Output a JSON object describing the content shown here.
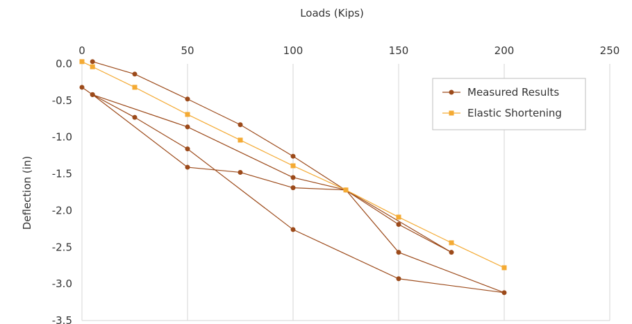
{
  "chart_data": {
    "type": "line",
    "title": "",
    "xlabel": "Loads (Kips)",
    "ylabel": "Deflection (in)",
    "xlim": [
      0,
      250
    ],
    "ylim": [
      -3.5,
      0.0
    ],
    "x_ticks": [
      "0",
      "50",
      "100",
      "150",
      "200",
      "250"
    ],
    "y_ticks": [
      "0.0",
      "-0.5",
      "-1.0",
      "-1.5",
      "-2.0",
      "-2.5",
      "-3.0",
      "-3.5"
    ],
    "x_axis_position": "top",
    "grid": {
      "vertical": true,
      "horizontal": false
    },
    "legend_position": "top-right",
    "series": [
      {
        "name": "Measured Results",
        "color": "#9c4a1a",
        "marker": "circle",
        "points": [
          [
            0,
            -0.32
          ],
          [
            5,
            -0.42
          ],
          [
            25,
            -0.73
          ],
          [
            50,
            -1.16
          ],
          [
            100,
            -2.26
          ],
          [
            150,
            -2.93
          ],
          [
            200,
            -3.12
          ],
          [
            150,
            -2.57
          ],
          [
            125,
            -1.72
          ],
          [
            100,
            -1.55
          ],
          [
            50,
            -0.86
          ],
          [
            5,
            -0.42
          ],
          [
            50,
            -1.41
          ],
          [
            75,
            -1.48
          ],
          [
            100,
            -1.69
          ],
          [
            125,
            -1.72
          ],
          [
            175,
            -2.57
          ],
          [
            150,
            -2.19
          ],
          [
            100,
            -1.26
          ],
          [
            75,
            -0.83
          ],
          [
            50,
            -0.48
          ],
          [
            25,
            -0.14
          ],
          [
            5,
            0.03
          ]
        ]
      },
      {
        "name": "Elastic Shortening",
        "color": "#f4aa33",
        "marker": "square",
        "points": [
          [
            0,
            0.03
          ],
          [
            5,
            -0.04
          ],
          [
            25,
            -0.32
          ],
          [
            50,
            -0.69
          ],
          [
            75,
            -1.04
          ],
          [
            100,
            -1.39
          ],
          [
            125,
            -1.72
          ],
          [
            150,
            -2.09
          ],
          [
            175,
            -2.44
          ],
          [
            200,
            -2.78
          ]
        ]
      }
    ]
  }
}
